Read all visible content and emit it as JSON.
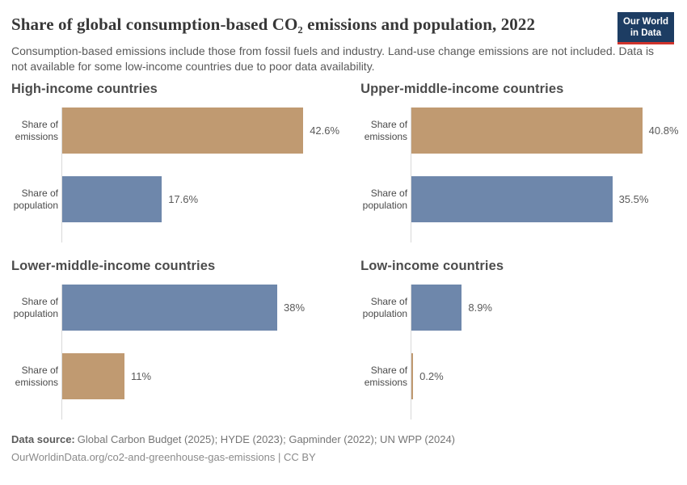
{
  "header": {
    "title": "Share of global consumption-based CO₂ emissions and population, 2022",
    "subtitle": "Consumption-based emissions include those from fossil fuels and industry. Land-use change emissions are not included. Data is not available for some low-income countries due to poor data availability.",
    "logo": {
      "line1": "Our World",
      "line2": "in Data"
    }
  },
  "chart_data": {
    "type": "bar",
    "orientation": "horizontal",
    "title": "Share of global consumption-based CO₂ emissions and population, 2022",
    "unit": "%",
    "xlim": [
      0,
      43
    ],
    "grid": false,
    "legend": "none",
    "colors": {
      "emissions": "#c09a71",
      "population": "#6e87ab"
    },
    "panels": [
      {
        "title": "High-income countries",
        "bars": [
          {
            "series": "emissions",
            "label_line1": "Share of",
            "label_line2": "emissions",
            "value": 42.6,
            "display": "42.6%"
          },
          {
            "series": "population",
            "label_line1": "Share of",
            "label_line2": "population",
            "value": 17.6,
            "display": "17.6%"
          }
        ]
      },
      {
        "title": "Upper-middle-income countries",
        "bars": [
          {
            "series": "emissions",
            "label_line1": "Share of",
            "label_line2": "emissions",
            "value": 40.8,
            "display": "40.8%"
          },
          {
            "series": "population",
            "label_line1": "Share of",
            "label_line2": "population",
            "value": 35.5,
            "display": "35.5%"
          }
        ]
      },
      {
        "title": "Lower-middle-income countries",
        "bars": [
          {
            "series": "population",
            "label_line1": "Share of",
            "label_line2": "population",
            "value": 38,
            "display": "38%"
          },
          {
            "series": "emissions",
            "label_line1": "Share of",
            "label_line2": "emissions",
            "value": 11,
            "display": "11%"
          }
        ]
      },
      {
        "title": "Low-income countries",
        "bars": [
          {
            "series": "population",
            "label_line1": "Share of",
            "label_line2": "population",
            "value": 8.9,
            "display": "8.9%"
          },
          {
            "series": "emissions",
            "label_line1": "Share of",
            "label_line2": "emissions",
            "value": 0.2,
            "display": "0.2%"
          }
        ]
      }
    ]
  },
  "footer": {
    "source_label": "Data source:",
    "source_text": "Global Carbon Budget (2025); HYDE (2023); Gapminder (2022); UN WPP (2024)",
    "license": "OurWorldinData.org/co2-and-greenhouse-gas-emissions | CC BY"
  }
}
